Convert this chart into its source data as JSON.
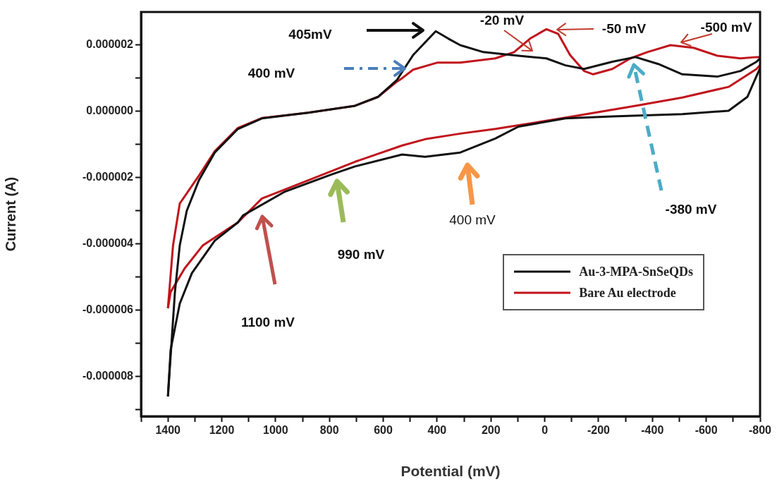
{
  "chart_data": {
    "type": "line",
    "xlabel": "Potential (mV)",
    "ylabel": "Current (A)",
    "xlim": [
      1500,
      -800
    ],
    "ylim": [
      -9.2e-06,
      3e-06
    ],
    "xticks": [
      {
        "value": 1500,
        "label": null
      },
      1400,
      {
        "value": 1300,
        "label": null
      },
      1200,
      {
        "value": 1100,
        "label": null
      },
      1000,
      {
        "value": 900,
        "label": null
      },
      800,
      {
        "value": 700,
        "label": null
      },
      600,
      {
        "value": 500,
        "label": null
      },
      400,
      {
        "value": 300,
        "label": null
      },
      200,
      {
        "value": 100,
        "label": null
      },
      0,
      {
        "value": -100,
        "label": null
      },
      -200,
      {
        "value": -300,
        "label": null
      },
      -400,
      {
        "value": -500,
        "label": null
      },
      -600,
      {
        "value": -700,
        "label": null
      },
      -800
    ],
    "yticks": [
      {
        "value": -9e-06,
        "label": null
      },
      {
        "value": -8e-06,
        "label": "-0.000008"
      },
      {
        "value": -7e-06,
        "label": null
      },
      {
        "value": -6e-06,
        "label": "-0.000006"
      },
      {
        "value": -5e-06,
        "label": null
      },
      {
        "value": -4e-06,
        "label": "-0.000004"
      },
      {
        "value": -3e-06,
        "label": null
      },
      {
        "value": -2e-06,
        "label": "-0.000002"
      },
      {
        "value": -1e-06,
        "label": null
      },
      {
        "value": 0,
        "label": "0.000000"
      },
      {
        "value": 1e-06,
        "label": null
      },
      {
        "value": 2e-06,
        "label": "0.000002"
      }
    ],
    "legend": "bottom right",
    "series": [
      {
        "name": "Au-3-MPA-SnSeQDs",
        "color": "#111111",
        "x": [
          1400,
          1374,
          1356,
          1330,
          1285,
          1226,
          1140,
          1051,
          879,
          705,
          619,
          549,
          489,
          405,
          359,
          314,
          228,
          98,
          -6,
          -77,
          -146,
          -251,
          -337,
          -422,
          -511,
          -641,
          -727,
          -787,
          -800
        ],
        "values": [
          -8.6e-06,
          -5.45e-06,
          -4.04e-06,
          -3e-06,
          -2.08e-06,
          -1.24e-06,
          -5.3e-07,
          -2.1e-07,
          -4e-08,
          1.7e-07,
          4.4e-07,
          9.5e-07,
          1.7e-06,
          2.42e-06,
          2.2e-06,
          2e-06,
          1.79e-06,
          1.68e-06,
          1.6e-06,
          1.39e-06,
          1.28e-06,
          1.5e-06,
          1.64e-06,
          1.43e-06,
          1.12e-06,
          1.05e-06,
          1.22e-06,
          1.5e-06,
          1.6e-06
        ]
      },
      {
        "color": "#111111",
        "x": [
          -800,
          -787,
          -753,
          -683,
          -511,
          -251,
          -77,
          98,
          184,
          314,
          445,
          530,
          705,
          791,
          965,
          1121,
          1140,
          1226,
          1311,
          1356,
          1390,
          1400
        ],
        "values": [
          1.3e-06,
          1.07e-06,
          4.4e-07,
          2e-08,
          -8e-08,
          -1.5e-07,
          -2.1e-07,
          -4.6e-07,
          -8.2e-07,
          -1.24e-06,
          -1.37e-06,
          -1.3e-06,
          -1.66e-06,
          -1.9e-06,
          -2.42e-06,
          -3.14e-06,
          -3.35e-06,
          -3.9e-06,
          -4.88e-06,
          -5.8e-06,
          -7.2e-06,
          -8.6e-06
        ]
      },
      {
        "name": "Bare Au electrode",
        "color": "#c0141c",
        "x": [
          1400,
          1381,
          1356,
          1285,
          1226,
          1140,
          1051,
          879,
          705,
          619,
          549,
          530,
          489,
          400,
          314,
          184,
          114,
          54,
          -6,
          -50,
          -94,
          -146,
          -180,
          -251,
          -318,
          -381,
          -467,
          -553,
          -641,
          -727,
          -787,
          -800
        ],
        "values": [
          -5.94e-06,
          -4.04e-06,
          -2.78e-06,
          -1.94e-06,
          -1.2e-06,
          -5e-07,
          -2e-07,
          -4e-08,
          1.7e-07,
          4.4e-07,
          9e-07,
          1e-06,
          1.26e-06,
          1.47e-06,
          1.47e-06,
          1.6e-06,
          1.79e-06,
          2.2e-06,
          2.48e-06,
          2.34e-06,
          1.7e-06,
          1.22e-06,
          1.12e-06,
          1.28e-06,
          1.6e-06,
          1.79e-06,
          2e-06,
          1.92e-06,
          1.68e-06,
          1.6e-06,
          1.64e-06,
          1.64e-06
        ]
      },
      {
        "color": "#c0141c",
        "x": [
          -800,
          -787,
          -683,
          -511,
          -337,
          -77,
          184,
          314,
          445,
          530,
          705,
          879,
          1051,
          1140,
          1270,
          1338,
          1390,
          1400
        ],
        "values": [
          1.4e-06,
          1.28e-06,
          7.4e-07,
          4.2e-07,
          1.7e-07,
          -1.9e-07,
          -5.3e-07,
          -6.7e-07,
          -8.4e-07,
          -1.03e-06,
          -1.52e-06,
          -2.08e-06,
          -2.63e-06,
          -3.35e-06,
          -4.04e-06,
          -4.74e-06,
          -5.45e-06,
          -5.94e-06
        ]
      }
    ],
    "annotations": [
      "405mV",
      "400 mV",
      "-20 mV",
      "-50 mV",
      "-500 mV",
      "-380 mV",
      "400 mV",
      "990 mV",
      "1100 mV"
    ]
  }
}
